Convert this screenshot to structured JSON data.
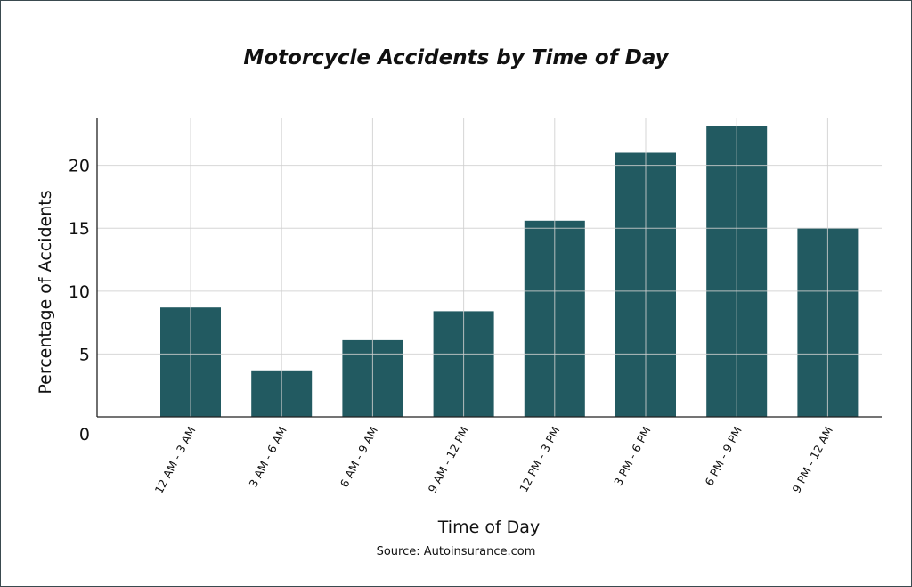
{
  "chart_data": {
    "type": "bar",
    "title": "Motorcycle Accidents by Time of Day",
    "xlabel": "Time of Day",
    "ylabel": "Percentage of Accidents",
    "categories": [
      "12 AM - 3 AM",
      "3 AM - 6 AM",
      "6 AM - 9 AM",
      "9 AM - 12 PM",
      "12 PM - 3 PM",
      "3 PM - 6 PM",
      "6 PM - 9 PM",
      "9 PM - 12 AM"
    ],
    "values": [
      8.7,
      3.7,
      6.1,
      8.4,
      15.6,
      21.0,
      23.1,
      15.0
    ],
    "ylim": [
      0,
      23.8
    ],
    "yticks": [
      0,
      5,
      10,
      15,
      20
    ],
    "grid": true,
    "bar_color": "#225a61",
    "source": "Source: Autoinsurance.com"
  }
}
